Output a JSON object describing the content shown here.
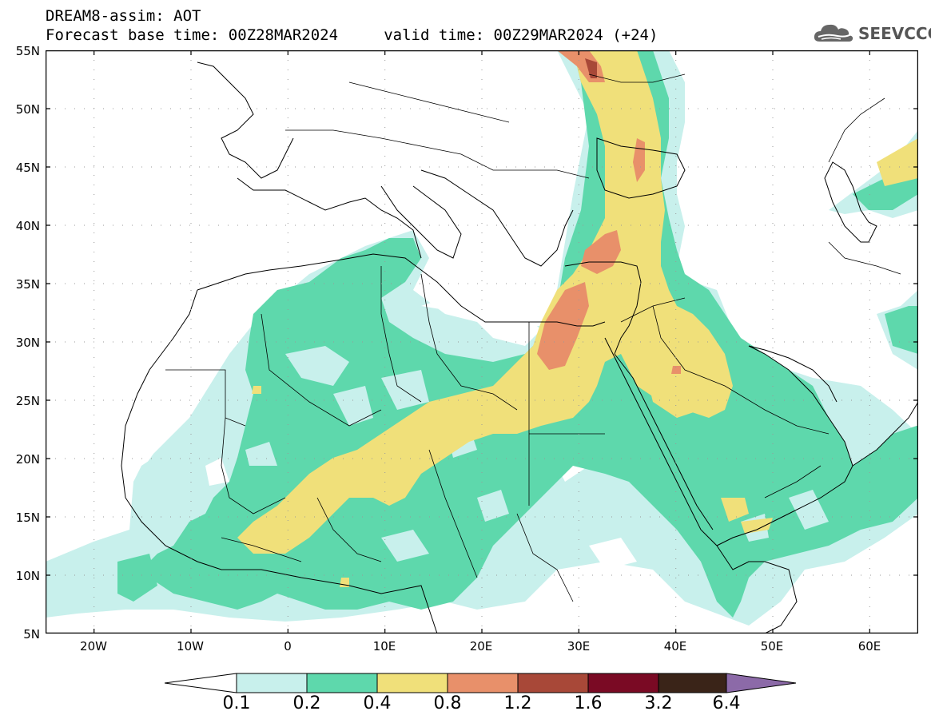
{
  "title_line1": "DREAM8-assim: AOT",
  "title_line2": "Forecast base time: 00Z28MAR2024     valid time: 00Z29MAR2024 (+24)",
  "logo_text": "SEEVCCC",
  "map": {
    "lat_labels": [
      "55N",
      "50N",
      "45N",
      "40N",
      "35N",
      "30N",
      "25N",
      "20N",
      "15N",
      "10N",
      "5N"
    ],
    "lon_labels": [
      "20W",
      "10W",
      "0",
      "10E",
      "20E",
      "30E",
      "40E",
      "50E",
      "60E"
    ],
    "extent": {
      "lon": [
        -25,
        65
      ],
      "lat": [
        5,
        55
      ]
    }
  },
  "colorbar": {
    "levels": [
      "0.1",
      "0.2",
      "0.4",
      "0.8",
      "1.2",
      "1.6",
      "3.2",
      "6.4"
    ],
    "colors": [
      "#c8f0ec",
      "#5ed8ac",
      "#f0e07a",
      "#e8906a",
      "#a84838",
      "#7a0a24",
      "#3a2418",
      "#8c6aa8"
    ],
    "under_color": "#ffffff",
    "over_color": "#8c6aa8"
  }
}
